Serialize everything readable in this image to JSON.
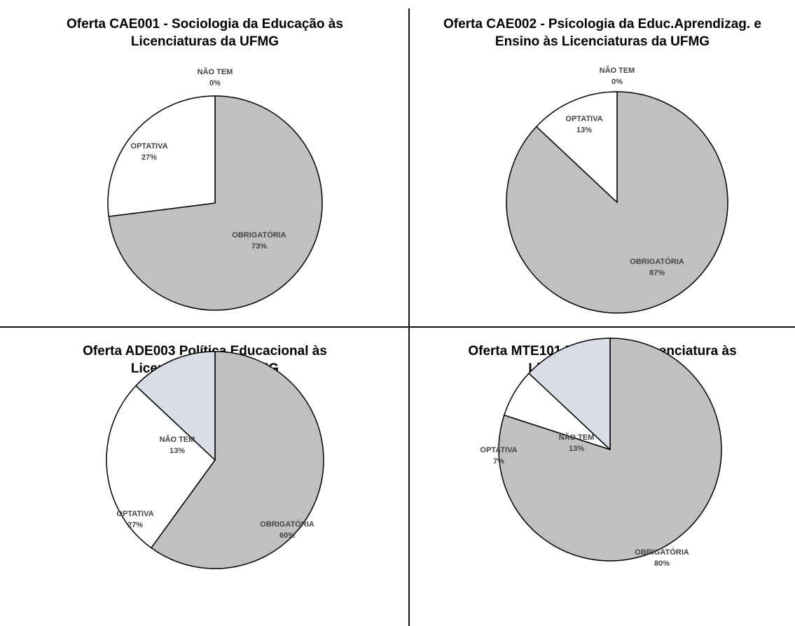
{
  "chart_data": [
    {
      "type": "pie",
      "title": "Oferta CAE001 -  Sociologia da Educação às\nLicenciaturas da UFMG",
      "slices": [
        {
          "label": "OBRIGATÓRIA",
          "value": 73,
          "value_label": "73%",
          "color": "#c0c0c0"
        },
        {
          "label": "NÃO TEM",
          "value": 0,
          "value_label": "0%",
          "color": "#d9dde6"
        },
        {
          "label": "OPTATIVA",
          "value": 27,
          "value_label": "27%",
          "color": "#ffffff"
        }
      ]
    },
    {
      "type": "pie",
      "title": "Oferta CAE002 -  Psicologia da Educ.Aprendizag. e\nEnsino às Licenciaturas da UFMG",
      "slices": [
        {
          "label": "OBRIGATÓRIA",
          "value": 87,
          "value_label": "87%",
          "color": "#c0c0c0"
        },
        {
          "label": "NÃO TEM",
          "value": 0,
          "value_label": "0%",
          "color": "#d9dde6"
        },
        {
          "label": "OPTATIVA",
          "value": 13,
          "value_label": "13%",
          "color": "#ffffff"
        }
      ]
    },
    {
      "type": "pie",
      "title": "Oferta ADE003 Política Educacional às\nLicenciaturas da UFMG",
      "slices": [
        {
          "label": "OBRIGATÓRIA",
          "value": 60,
          "value_label": "60%",
          "color": "#c0c0c0"
        },
        {
          "label": "OPTATIVA",
          "value": 27,
          "value_label": "27%",
          "color": "#ffffff"
        },
        {
          "label": "NÃO TEM",
          "value": 13,
          "value_label": "13%",
          "color": "#d9dde6"
        }
      ]
    },
    {
      "type": "pie",
      "title": "Oferta MTE101 Didática de Licenciatura às\nLicenciaturas da UFMG",
      "slices": [
        {
          "label": "OBRIGATÓRIA",
          "value": 80,
          "value_label": "80%",
          "color": "#c0c0c0"
        },
        {
          "label": "OPTATIVA",
          "value": 7,
          "value_label": "7%",
          "color": "#ffffff"
        },
        {
          "label": "NÃO TEM",
          "value": 13,
          "value_label": "13%",
          "color": "#d9dde6"
        }
      ]
    }
  ]
}
